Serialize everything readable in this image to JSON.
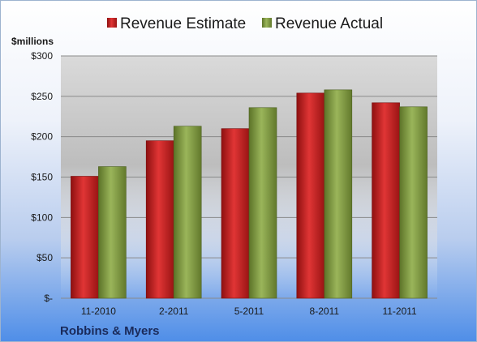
{
  "chart_data": {
    "type": "bar",
    "title": "",
    "unit_label": "$millions",
    "footer_label": "Robbins & Myers",
    "categories": [
      "11-2010",
      "2-2011",
      "5-2011",
      "8-2011",
      "11-2011"
    ],
    "series": [
      {
        "name": "Revenue Estimate",
        "values": [
          151,
          195,
          210,
          254,
          242
        ],
        "color": "#cc1f1f"
      },
      {
        "name": "Revenue Actual",
        "values": [
          163,
          213,
          236,
          258,
          237
        ],
        "color": "#7f9a40"
      }
    ],
    "ylim": [
      0,
      300
    ],
    "yticks": [
      0,
      50,
      100,
      150,
      200,
      250,
      300
    ],
    "ytick_labels": [
      "$-",
      "$50",
      "$100",
      "$150",
      "$200",
      "$250",
      "$300"
    ],
    "grid": true,
    "legend_position": "top"
  }
}
